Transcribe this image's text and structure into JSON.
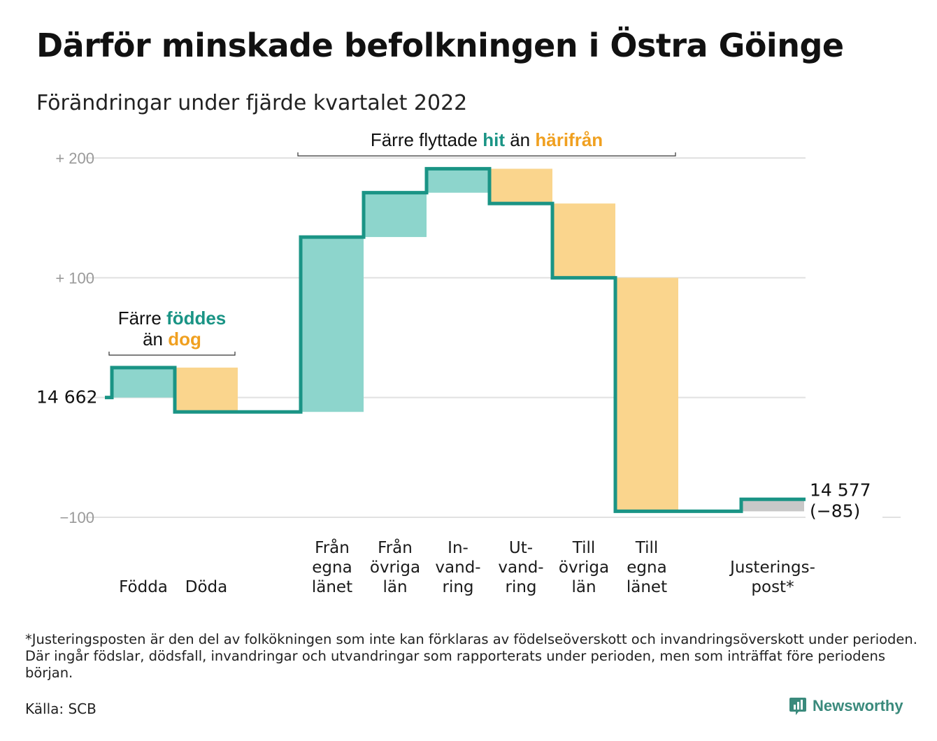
{
  "title": "Därför minskade befolkningen i Östra Göinge",
  "subtitle": "Förändringar under fjärde kvartalet 2022",
  "footnote": "*Justeringsposten är den del av folkökningen som inte kan förklaras av födelseöverskott och invandringsöverskott under perioden. Där ingår födslar, dödsfall, invandringar och utvandringar som rapporterats under perioden, men som inträffat före periodens början.",
  "source": "Källa: SCB",
  "brand": "Newsworthy",
  "colors": {
    "increase": "#8dd5cc",
    "decrease": "#fad58d",
    "adjustment": "#c8c8c8",
    "line": "#1a9485",
    "grid": "#e1e1e1",
    "teal_text": "#1a9485",
    "orange_text": "#f0a020"
  },
  "chart_data": {
    "type": "waterfall",
    "start_value": 14662,
    "start_label": "14 662",
    "end_label": "14 577",
    "end_change_label": "(−85)",
    "y_ticks": [
      {
        "value": 200,
        "label": "+ 200"
      },
      {
        "value": 100,
        "label": "+ 100"
      },
      {
        "value": 0,
        "label": ""
      },
      {
        "value": -100,
        "label": "−100"
      }
    ],
    "ylim": [
      -100,
      200
    ],
    "categories": [
      {
        "label": [
          "Födda"
        ],
        "change": 25,
        "kind": "increase"
      },
      {
        "label": [
          "Döda"
        ],
        "change": -37,
        "kind": "decrease"
      },
      {
        "label": [],
        "change": 0,
        "kind": "none"
      },
      {
        "label": [
          "Från",
          "egna",
          "länet"
        ],
        "change": 146,
        "kind": "increase"
      },
      {
        "label": [
          "Från",
          "övriga",
          "län"
        ],
        "change": 37,
        "kind": "increase"
      },
      {
        "label": [
          "In-",
          "vand-",
          "ring"
        ],
        "change": 20,
        "kind": "increase"
      },
      {
        "label": [
          "Ut-",
          "vand-",
          "ring"
        ],
        "change": -29,
        "kind": "decrease"
      },
      {
        "label": [
          "Till",
          "övriga",
          "län"
        ],
        "change": -62,
        "kind": "decrease"
      },
      {
        "label": [
          "Till",
          "egna",
          "länet"
        ],
        "change": -195,
        "kind": "decrease"
      },
      {
        "label": [],
        "change": 0,
        "kind": "none"
      },
      {
        "label": [
          "Justerings-",
          "post*"
        ],
        "change": 10,
        "kind": "adjustment"
      }
    ],
    "annotations": [
      {
        "from": 0,
        "to": 1,
        "parts": [
          [
            {
              "text": "Färre ",
              "style": "plain"
            },
            {
              "text": "föddes",
              "style": "teal"
            }
          ],
          [
            {
              "text": "än ",
              "style": "plain"
            },
            {
              "text": "dog",
              "style": "orange"
            }
          ]
        ]
      },
      {
        "from": 3,
        "to": 8,
        "parts": [
          [
            {
              "text": "Färre flyttade ",
              "style": "plain"
            },
            {
              "text": "hit",
              "style": "teal"
            },
            {
              "text": " än ",
              "style": "plain"
            },
            {
              "text": "härifrån",
              "style": "orange"
            }
          ]
        ]
      }
    ]
  }
}
